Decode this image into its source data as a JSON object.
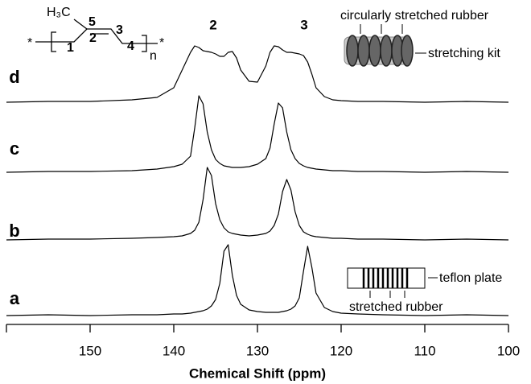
{
  "chart_data": {
    "type": "line",
    "xlabel": "Chemical Shift (ppm)",
    "xlim": [
      160,
      100
    ],
    "xticks": [
      150,
      140,
      130,
      120,
      110,
      100
    ],
    "x": [
      160,
      155,
      150,
      145,
      142,
      140,
      139,
      138,
      137.5,
      137,
      136.5,
      136,
      135.5,
      135,
      134.5,
      134,
      133.5,
      133,
      132.5,
      132,
      131,
      130,
      129,
      128.5,
      128,
      127.5,
      127,
      126.5,
      126,
      125.5,
      125,
      124.5,
      124,
      123.5,
      123,
      122,
      121,
      120,
      118,
      115,
      110,
      105,
      100
    ],
    "series": [
      {
        "name": "a",
        "color": "#000000",
        "values": [
          0,
          1,
          0,
          1,
          1,
          2,
          2,
          3,
          4,
          5,
          6,
          8,
          12,
          20,
          40,
          80,
          88,
          50,
          25,
          14,
          7,
          5,
          4,
          4,
          4,
          4,
          5,
          6,
          8,
          12,
          22,
          55,
          86,
          60,
          28,
          10,
          5,
          3,
          2,
          1,
          0,
          1,
          0
        ]
      },
      {
        "name": "b",
        "color": "#000000",
        "values": [
          0,
          1,
          1,
          2,
          3,
          4,
          5,
          8,
          12,
          22,
          50,
          90,
          80,
          45,
          25,
          15,
          10,
          8,
          7,
          6,
          5,
          6,
          8,
          11,
          18,
          32,
          60,
          75,
          62,
          35,
          18,
          10,
          7,
          5,
          4,
          3,
          2,
          2,
          1,
          1,
          0,
          1,
          0
        ]
      },
      {
        "name": "c",
        "color": "#000000",
        "values": [
          0,
          1,
          1,
          2,
          4,
          7,
          10,
          20,
          55,
          95,
          85,
          50,
          28,
          16,
          11,
          8,
          7,
          6,
          6,
          6,
          7,
          10,
          17,
          30,
          60,
          86,
          80,
          50,
          28,
          17,
          11,
          8,
          6,
          5,
          4,
          3,
          2,
          2,
          1,
          1,
          0,
          1,
          0
        ]
      },
      {
        "name": "d",
        "color": "#000000",
        "values": [
          0,
          1,
          1,
          3,
          6,
          18,
          40,
          62,
          70,
          68,
          64,
          63,
          62,
          60,
          57,
          57,
          62,
          63,
          55,
          40,
          26,
          25,
          45,
          62,
          70,
          69,
          65,
          62,
          62,
          61,
          60,
          58,
          50,
          35,
          18,
          7,
          3,
          2,
          1,
          1,
          0,
          1,
          0
        ]
      }
    ],
    "annotations": {
      "peak_labels": [
        "2",
        "3"
      ],
      "structure": {
        "methyl": "H₃C",
        "c5": "5",
        "c1": "1",
        "c2": "2",
        "c3": "3",
        "c4": "4",
        "repeat": "n",
        "end_left": "*",
        "end_right": "*"
      },
      "inset_d": {
        "top": "circularly stretched rubber",
        "side": "stretching kit"
      },
      "inset_a": {
        "side": "teflon plate",
        "bottom": "stretched rubber"
      }
    }
  }
}
